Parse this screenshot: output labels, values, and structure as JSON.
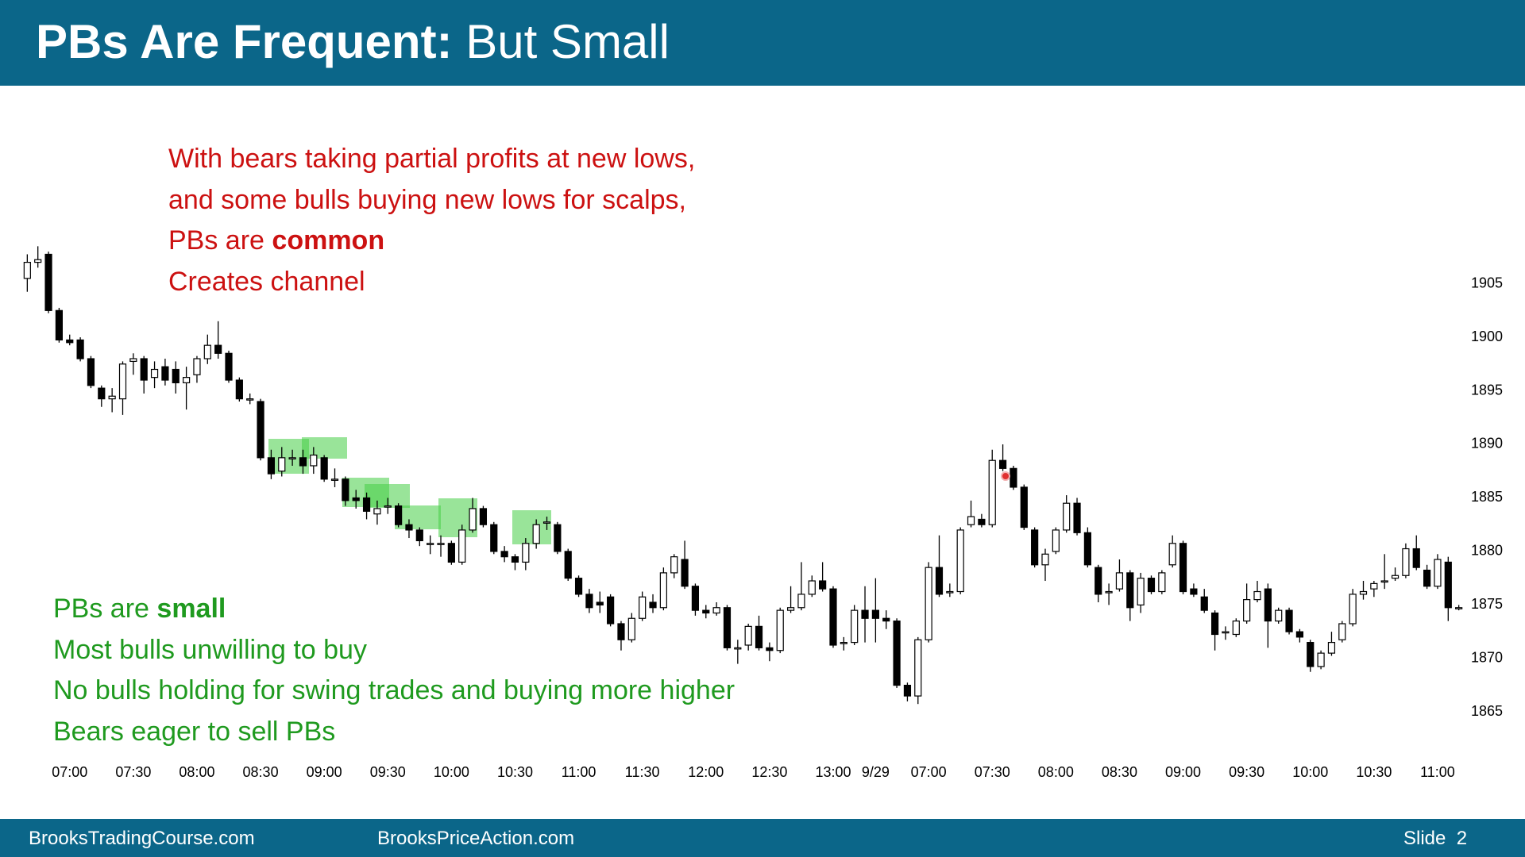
{
  "header": {
    "title_bold": "PBs Are Frequent:",
    "title_rest": "But Small"
  },
  "red_note": {
    "color": "#cc1111",
    "line1": "With bears taking partial profits at new lows,",
    "line2": "and some bulls buying new lows for scalps,",
    "line3": "PBs are",
    "line3_bold": "common",
    "line4": "Creates channel"
  },
  "green_note": {
    "color": "#1f9a1f",
    "line1": "PBs are",
    "line1_bold": "small",
    "line2": "Most bulls unwilling to buy",
    "line3": "No bulls holding for swing trades and buying more higher",
    "line4": "Bears eager to sell PBs"
  },
  "chart_data": {
    "type": "candlestick",
    "up_color": "#ffffff",
    "down_color": "#000000",
    "wick_color": "#000000",
    "xlim": [
      -1,
      136
    ],
    "ylim": [
      1862,
      1909
    ],
    "xticks": [
      {
        "value": 4,
        "label": "07:00"
      },
      {
        "value": 10,
        "label": "07:30"
      },
      {
        "value": 16,
        "label": "08:00"
      },
      {
        "value": 22,
        "label": "08:30"
      },
      {
        "value": 28,
        "label": "09:00"
      },
      {
        "value": 34,
        "label": "09:30"
      },
      {
        "value": 40,
        "label": "10:00"
      },
      {
        "value": 46,
        "label": "10:30"
      },
      {
        "value": 52,
        "label": "11:00"
      },
      {
        "value": 58,
        "label": "11:30"
      },
      {
        "value": 64,
        "label": "12:00"
      },
      {
        "value": 70,
        "label": "12:30"
      },
      {
        "value": 76,
        "label": "13:00"
      },
      {
        "value": 80,
        "label": "9/29"
      },
      {
        "value": 85,
        "label": "07:00"
      },
      {
        "value": 91,
        "label": "07:30"
      },
      {
        "value": 97,
        "label": "08:00"
      },
      {
        "value": 103,
        "label": "08:30"
      },
      {
        "value": 109,
        "label": "09:00"
      },
      {
        "value": 115,
        "label": "09:30"
      },
      {
        "value": 121,
        "label": "10:00"
      },
      {
        "value": 127,
        "label": "10:30"
      },
      {
        "value": 133,
        "label": "11:00"
      }
    ],
    "yticks": [
      1865,
      1870,
      1875,
      1880,
      1885,
      1890,
      1895,
      1900,
      1905
    ],
    "open": [
      1905.5,
      1907,
      1907.75,
      1902.5,
      1899.75,
      1899.75,
      1898,
      1895.25,
      1894.25,
      1894.25,
      1897.75,
      1898,
      1896.25,
      1897.25,
      1897,
      1895.75,
      1896.5,
      1898,
      1899.25,
      1898.5,
      1896,
      1894.25,
      1894,
      1888.75,
      1887.5,
      1888.75,
      1888.75,
      1888,
      1888.75,
      1886.75,
      1886.75,
      1885,
      1885,
      1883.5,
      1884.25,
      1884.25,
      1882.5,
      1882,
      1880.75,
      1880.75,
      1880.75,
      1879,
      1882,
      1884,
      1882.5,
      1880,
      1879.5,
      1879,
      1880.75,
      1882.75,
      1882.5,
      1880,
      1877.5,
      1876,
      1875.25,
      1875.75,
      1873.25,
      1871.75,
      1873.75,
      1875.25,
      1874.75,
      1878,
      1879.25,
      1876.75,
      1874.5,
      1874.25,
      1874.75,
      1871,
      1871.25,
      1873,
      1871,
      1870.75,
      1874.5,
      1874.75,
      1876,
      1877.25,
      1876.5,
      1871.5,
      1871.5,
      1874.5,
      1874.5,
      1873.75,
      1873.5,
      1867.5,
      1866.5,
      1871.75,
      1878.5,
      1876.25,
      1876.25,
      1882.5,
      1883,
      1882.5,
      1888.5,
      1887.75,
      1886,
      1882,
      1878.75,
      1880,
      1882,
      1884.5,
      1881.75,
      1878.5,
      1876.25,
      1876.5,
      1878,
      1875,
      1877.5,
      1876.25,
      1878.75,
      1880.75,
      1876.5,
      1875.75,
      1874.25,
      1872.5,
      1872.25,
      1873.5,
      1875.5,
      1876.5,
      1873.5,
      1874.5,
      1872.5,
      1871.5,
      1869.25,
      1870.5,
      1871.75,
      1873.25,
      1876,
      1876.5,
      1877.25,
      1877.5,
      1877.75,
      1880.25,
      1878.25,
      1876.75,
      1879,
      1874.75
    ],
    "high": [
      1907.75,
      1908.5,
      1908,
      1902.75,
      1900.25,
      1900,
      1898.25,
      1895.5,
      1895.25,
      1897.75,
      1898.5,
      1898.25,
      1897.75,
      1898,
      1897.75,
      1897.25,
      1898.25,
      1900.25,
      1901.5,
      1898.75,
      1896.25,
      1894.75,
      1894.25,
      1889.5,
      1889.75,
      1889.5,
      1889.5,
      1889.75,
      1889,
      1887.75,
      1887,
      1885.75,
      1885.5,
      1884.75,
      1885,
      1884.5,
      1883,
      1882.25,
      1881.5,
      1881.5,
      1881,
      1882.5,
      1885,
      1884.25,
      1882.75,
      1880.5,
      1879.75,
      1881.25,
      1883,
      1883.25,
      1882.75,
      1880.25,
      1877.75,
      1876.5,
      1876.25,
      1876,
      1873.5,
      1874.25,
      1876.25,
      1876,
      1878.5,
      1879.75,
      1881,
      1877,
      1875,
      1875.25,
      1875,
      1871.75,
      1873.25,
      1874,
      1871.5,
      1874.75,
      1876.75,
      1879,
      1877.75,
      1879,
      1876.75,
      1872,
      1875,
      1876.75,
      1877.5,
      1874.5,
      1873.75,
      1867.75,
      1872,
      1879,
      1881.5,
      1877,
      1882.25,
      1884.75,
      1883.5,
      1889.5,
      1890,
      1888,
      1886.25,
      1882.25,
      1880.25,
      1882.25,
      1885.25,
      1885,
      1882.25,
      1878.75,
      1877,
      1879.25,
      1878.25,
      1878,
      1877.75,
      1878.25,
      1881.5,
      1881,
      1877,
      1876.5,
      1874.5,
      1873,
      1873.75,
      1877,
      1877.25,
      1877,
      1874.75,
      1874.75,
      1872.75,
      1871.75,
      1870.75,
      1872.5,
      1873.5,
      1876.5,
      1877.25,
      1877.25,
      1879.75,
      1878.5,
      1880.75,
      1881.5,
      1878.75,
      1879.75,
      1879.5,
      1875
    ],
    "low": [
      1904.25,
      1906.5,
      1902.25,
      1899.5,
      1899.25,
      1897.75,
      1895.25,
      1893.5,
      1893,
      1892.75,
      1896.5,
      1894.75,
      1895.25,
      1895.5,
      1894.75,
      1893.25,
      1895.75,
      1897.5,
      1898,
      1895.75,
      1894,
      1893.75,
      1888.5,
      1886.75,
      1887,
      1888,
      1887.25,
      1887.25,
      1886.5,
      1886,
      1884.25,
      1884,
      1883,
      1882.5,
      1883.5,
      1882.25,
      1881.25,
      1880.5,
      1879.75,
      1879.5,
      1878.75,
      1878.75,
      1881.75,
      1882.25,
      1879.75,
      1879,
      1878.25,
      1878.25,
      1880.25,
      1882,
      1879.75,
      1877.25,
      1875.75,
      1874.25,
      1874.25,
      1873,
      1870.75,
      1871.5,
      1873.5,
      1874.25,
      1874.5,
      1877.5,
      1876.5,
      1874,
      1873.75,
      1874,
      1870.75,
      1869.5,
      1870.75,
      1870.75,
      1869.75,
      1870.5,
      1874.25,
      1874.5,
      1875.75,
      1876.25,
      1871,
      1870.75,
      1871.25,
      1871.5,
      1871.5,
      1872.75,
      1867.25,
      1866,
      1865.75,
      1871.5,
      1875.75,
      1875.75,
      1876,
      1882.25,
      1882.25,
      1882.25,
      1887.5,
      1885.75,
      1882,
      1878.5,
      1877.25,
      1879.75,
      1881.75,
      1881.5,
      1878.5,
      1875.25,
      1875,
      1876.25,
      1873.5,
      1874.25,
      1876,
      1876,
      1878.5,
      1876,
      1875.75,
      1874.25,
      1870.75,
      1871.75,
      1872,
      1873.25,
      1875.25,
      1871,
      1873.25,
      1872.25,
      1871.5,
      1868.75,
      1869,
      1870.25,
      1871.5,
      1873,
      1875.5,
      1875.75,
      1876.5,
      1877.25,
      1877.5,
      1878.25,
      1876.5,
      1876.5,
      1873.5,
      1874.5
    ],
    "close": [
      1907,
      1907.25,
      1902.5,
      1899.75,
      1899.5,
      1898,
      1895.5,
      1894.25,
      1894.5,
      1897.5,
      1898,
      1896,
      1897,
      1896,
      1895.75,
      1896.25,
      1898,
      1899.25,
      1898.5,
      1896,
      1894.25,
      1894.25,
      1888.75,
      1887.25,
      1888.75,
      1888.75,
      1888,
      1889,
      1886.75,
      1886.75,
      1884.75,
      1884.75,
      1883.75,
      1884,
      1884.25,
      1882.5,
      1882,
      1881,
      1880.75,
      1880.75,
      1879,
      1882,
      1884,
      1882.5,
      1880,
      1879.5,
      1879,
      1880.75,
      1882.5,
      1882.75,
      1880,
      1877.5,
      1876,
      1874.75,
      1875,
      1873.25,
      1871.75,
      1873.75,
      1875.75,
      1874.75,
      1878,
      1879.5,
      1876.75,
      1874.5,
      1874.25,
      1874.75,
      1871,
      1871,
      1873,
      1871,
      1870.75,
      1874.5,
      1874.75,
      1876,
      1877.25,
      1876.5,
      1871.25,
      1871.5,
      1874.5,
      1873.75,
      1873.75,
      1873.5,
      1867.5,
      1866.5,
      1871.75,
      1878.5,
      1876,
      1876.25,
      1882,
      1883.25,
      1882.5,
      1888.5,
      1887.75,
      1886,
      1882.25,
      1878.75,
      1879.75,
      1882,
      1884.5,
      1881.75,
      1878.75,
      1876,
      1876.25,
      1878,
      1874.75,
      1877.5,
      1876.25,
      1878,
      1880.75,
      1876.25,
      1876,
      1874.5,
      1872.25,
      1872.5,
      1873.5,
      1875.5,
      1876.25,
      1873.5,
      1874.5,
      1872.5,
      1872,
      1869.25,
      1870.5,
      1871.5,
      1873.25,
      1876,
      1876.25,
      1877,
      1877.25,
      1877.75,
      1880.25,
      1878.5,
      1876.75,
      1879.25,
      1874.75,
      1874.75
    ]
  },
  "footer": {
    "left": "BrooksTradingCourse.com",
    "middle": "BrooksPriceAction.com",
    "right": "Slide  2"
  }
}
